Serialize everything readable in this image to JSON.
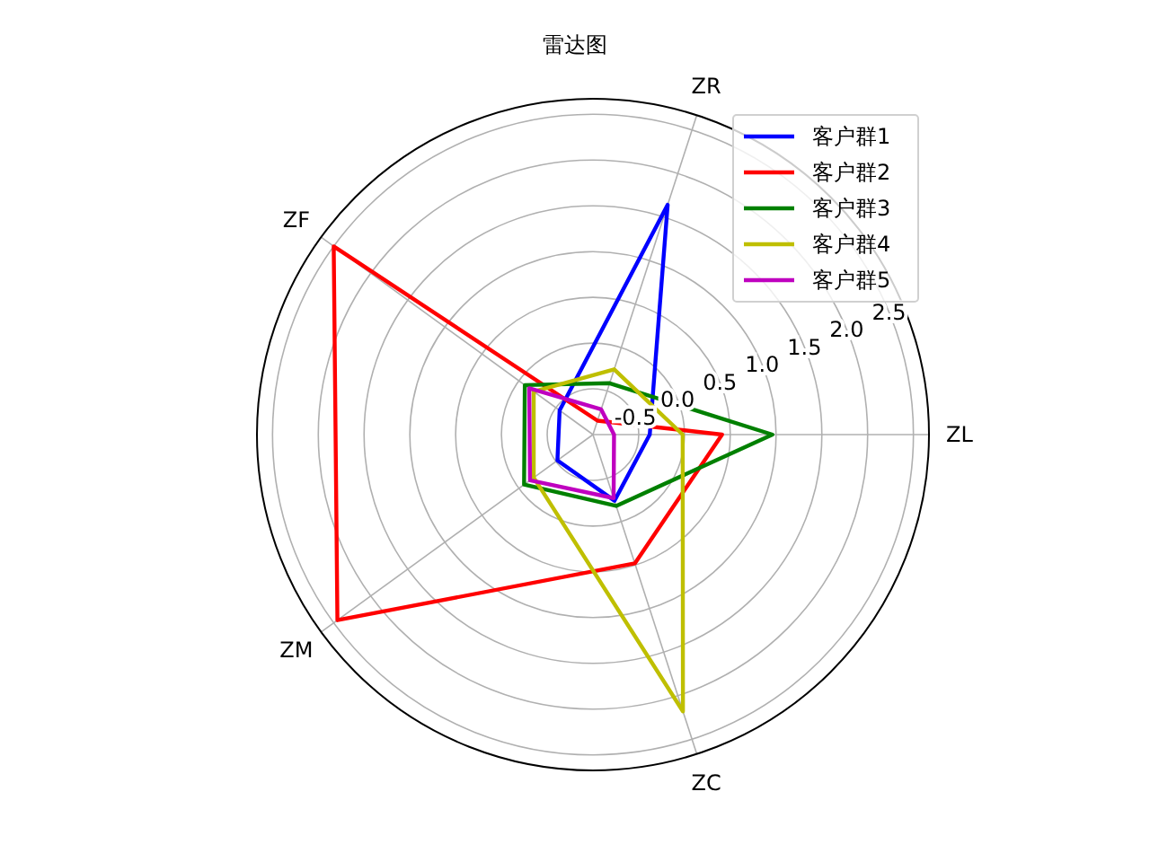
{
  "chart_data": {
    "type": "radar",
    "title": "雷达图",
    "categories": [
      "ZR",
      "ZL",
      "ZC",
      "ZM",
      "ZF"
    ],
    "ylim": [
      -1,
      2.67
    ],
    "yticks": [
      -0.5,
      {
        "value": 0,
        "label": "0.0"
      },
      0.5,
      {
        "value": 1,
        "label": "1.0"
      },
      1.5,
      {
        "value": 2,
        "label": "2.0"
      },
      2.5
    ],
    "grid": true,
    "legend": "top right",
    "series": [
      {
        "name": "客户群1",
        "color": "#0000ff",
        "values": [
          1.64,
          -0.38,
          -0.24,
          -0.52,
          -0.55
        ]
      },
      {
        "name": "客户群2",
        "color": "#ff0000",
        "values": [
          -0.84,
          0.41,
          0.48,
          2.45,
          2.5
        ]
      },
      {
        "name": "客户群3",
        "color": "#008000",
        "values": [
          -0.41,
          0.96,
          -0.18,
          -0.07,
          -0.08
        ]
      },
      {
        "name": "客户群4",
        "color": "#bfbf00",
        "values": [
          -0.25,
          -0.02,
          2.18,
          -0.2,
          -0.2
        ]
      },
      {
        "name": "客户群5",
        "color": "#bf00bf",
        "values": [
          -0.71,
          -0.77,
          -0.27,
          -0.15,
          -0.14
        ]
      }
    ]
  }
}
